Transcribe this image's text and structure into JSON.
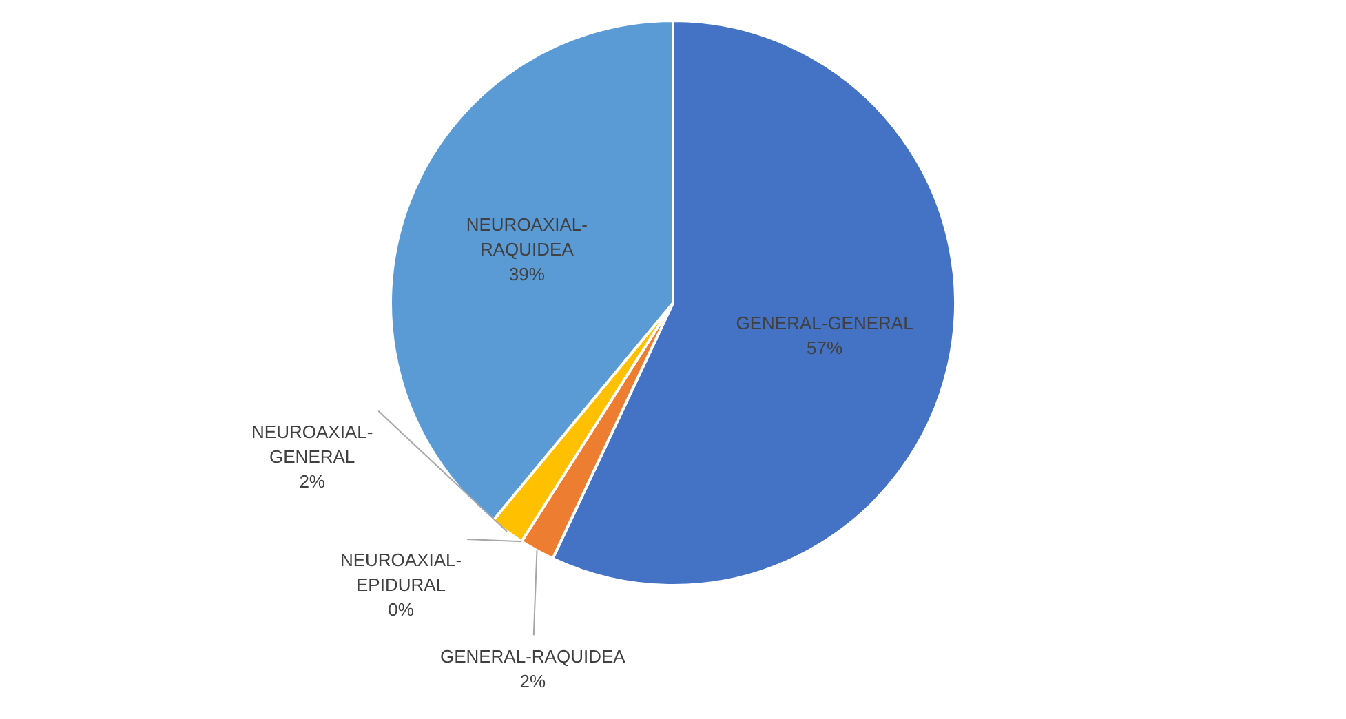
{
  "chart_data": {
    "type": "pie",
    "categories": [
      "GENERAL-GENERAL",
      "GENERAL-RAQUIDEA",
      "NEUROAXIAL-EPIDURAL",
      "NEUROAXIAL-GENERAL",
      "NEUROAXIAL-RAQUIDEA"
    ],
    "values": [
      57,
      2,
      0,
      2,
      39
    ],
    "value_labels": [
      "57%",
      "2%",
      "0%",
      "2%",
      "39%"
    ],
    "colors": [
      "#4472c4",
      "#ed7d31",
      "#a5a5a5",
      "#ffc000",
      "#5b9bd5"
    ],
    "legend": false
  }
}
